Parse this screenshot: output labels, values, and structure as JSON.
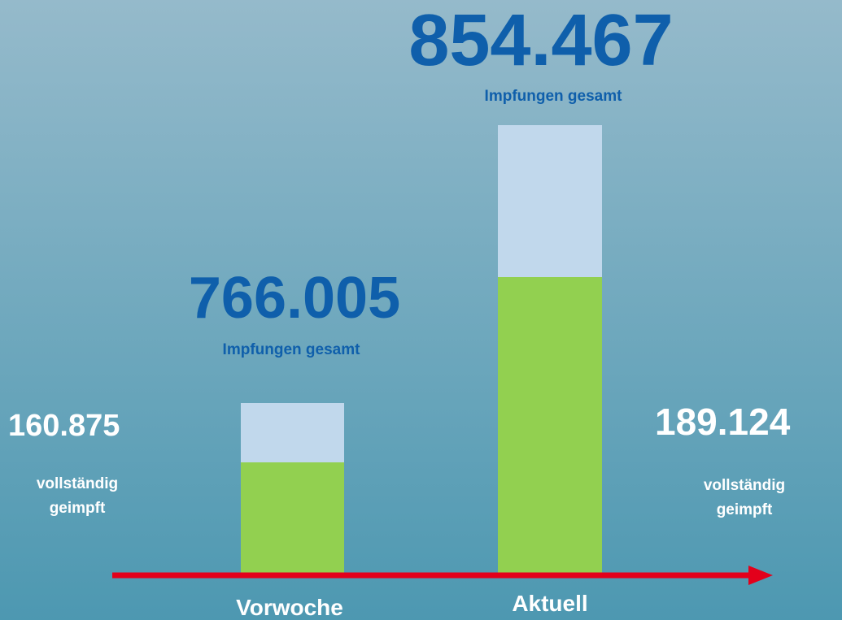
{
  "previous": {
    "total": "766.005",
    "total_label": "Impfungen gesamt",
    "complete": "160.875",
    "complete_label_1": "vollständig",
    "complete_label_2": "geimpft",
    "period": "Vorwoche"
  },
  "current": {
    "total": "854.467",
    "total_label": "Impfungen gesamt",
    "complete": "189.124",
    "complete_label_1": "vollständig",
    "complete_label_2": "geimpft",
    "period": "Aktuell"
  }
}
